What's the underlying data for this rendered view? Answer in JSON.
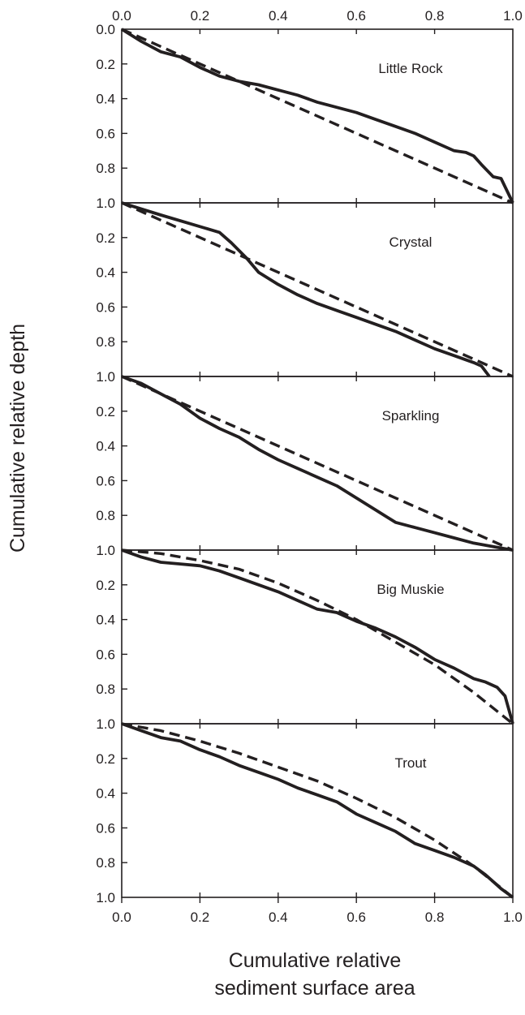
{
  "chart_data": {
    "type": "line",
    "ylabel": "Cumulative relative depth",
    "xlabel_lines": [
      "Cumulative relative",
      "sediment surface area"
    ],
    "xlim": [
      0,
      1
    ],
    "ylim": [
      0,
      1
    ],
    "y_inverted": true,
    "grid": false,
    "x_ticks": [
      "0.0",
      "0.2",
      "0.4",
      "0.6",
      "0.8",
      "1.0"
    ],
    "y_ticks": [
      "0.0",
      "0.2",
      "0.4",
      "0.6",
      "0.8",
      "1.0"
    ],
    "panels_y_ticks": [
      [
        "0.0",
        "0.2",
        "0.4",
        "0.6",
        "0.8",
        "1.0"
      ],
      [
        "1.0",
        "0.2",
        "0.4",
        "0.6",
        "0.8",
        "1.0"
      ],
      [
        "1.0",
        "0.2",
        "0.4",
        "0.6",
        "0.8",
        "1.0"
      ],
      [
        "1.0",
        "0.2",
        "0.4",
        "0.6",
        "0.8",
        "1.0"
      ],
      [
        "1.0",
        "0.2",
        "0.4",
        "0.6",
        "0.8",
        "1.0"
      ]
    ],
    "panels": [
      {
        "lake": "Little Rock",
        "series": [
          {
            "style": "solid",
            "x": [
              0,
              0.05,
              0.1,
              0.15,
              0.2,
              0.25,
              0.3,
              0.35,
              0.4,
              0.45,
              0.5,
              0.55,
              0.6,
              0.65,
              0.7,
              0.75,
              0.8,
              0.85,
              0.88,
              0.9,
              0.92,
              0.95,
              0.97,
              1.0
            ],
            "y": [
              0,
              0.07,
              0.13,
              0.16,
              0.22,
              0.27,
              0.3,
              0.32,
              0.35,
              0.38,
              0.42,
              0.45,
              0.48,
              0.52,
              0.56,
              0.6,
              0.65,
              0.7,
              0.71,
              0.73,
              0.78,
              0.85,
              0.86,
              1.0
            ]
          },
          {
            "style": "dashed",
            "x": [
              0,
              1
            ],
            "y": [
              0,
              1
            ]
          }
        ]
      },
      {
        "lake": "Crystal",
        "series": [
          {
            "style": "solid",
            "x": [
              0,
              0.1,
              0.25,
              0.28,
              0.32,
              0.35,
              0.4,
              0.45,
              0.5,
              0.55,
              0.6,
              0.65,
              0.7,
              0.75,
              0.8,
              0.85,
              0.9,
              0.92,
              0.94
            ],
            "y": [
              0,
              0.07,
              0.17,
              0.23,
              0.32,
              0.4,
              0.47,
              0.53,
              0.58,
              0.62,
              0.66,
              0.7,
              0.74,
              0.79,
              0.84,
              0.88,
              0.92,
              0.94,
              1.0
            ]
          },
          {
            "style": "dashed",
            "x": [
              0,
              1
            ],
            "y": [
              0,
              1
            ]
          }
        ]
      },
      {
        "lake": "Sparkling",
        "series": [
          {
            "style": "solid",
            "x": [
              0,
              0.05,
              0.1,
              0.15,
              0.2,
              0.25,
              0.3,
              0.35,
              0.4,
              0.45,
              0.5,
              0.55,
              0.6,
              0.65,
              0.7,
              0.75,
              0.8,
              0.85,
              0.9,
              0.95,
              1.0
            ],
            "y": [
              0,
              0.04,
              0.1,
              0.16,
              0.24,
              0.3,
              0.35,
              0.42,
              0.48,
              0.53,
              0.58,
              0.63,
              0.7,
              0.77,
              0.84,
              0.87,
              0.9,
              0.93,
              0.96,
              0.98,
              1.0
            ]
          },
          {
            "style": "dashed",
            "x": [
              0,
              1
            ],
            "y": [
              0,
              1
            ]
          }
        ]
      },
      {
        "lake": "Big Muskie",
        "series": [
          {
            "style": "solid",
            "x": [
              0,
              0.05,
              0.1,
              0.15,
              0.2,
              0.25,
              0.3,
              0.35,
              0.4,
              0.45,
              0.5,
              0.55,
              0.6,
              0.65,
              0.7,
              0.75,
              0.8,
              0.85,
              0.9,
              0.93,
              0.96,
              0.98,
              1.0
            ],
            "y": [
              0,
              0.04,
              0.07,
              0.08,
              0.09,
              0.12,
              0.16,
              0.2,
              0.24,
              0.29,
              0.34,
              0.36,
              0.41,
              0.45,
              0.5,
              0.56,
              0.63,
              0.68,
              0.74,
              0.76,
              0.79,
              0.84,
              1.0
            ]
          },
          {
            "style": "dashed",
            "x": [
              0,
              0.1,
              0.2,
              0.3,
              0.4,
              0.5,
              0.6,
              0.7,
              0.8,
              0.9,
              1.0
            ],
            "y": [
              0,
              0.02,
              0.06,
              0.11,
              0.19,
              0.29,
              0.4,
              0.53,
              0.66,
              0.82,
              1.0
            ]
          }
        ]
      },
      {
        "lake": "Trout",
        "series": [
          {
            "style": "solid",
            "x": [
              0,
              0.05,
              0.1,
              0.15,
              0.2,
              0.25,
              0.3,
              0.35,
              0.4,
              0.45,
              0.5,
              0.55,
              0.6,
              0.65,
              0.7,
              0.75,
              0.8,
              0.85,
              0.9,
              0.93,
              0.95,
              0.97,
              1.0
            ],
            "y": [
              0,
              0.04,
              0.08,
              0.1,
              0.15,
              0.19,
              0.24,
              0.28,
              0.32,
              0.37,
              0.41,
              0.45,
              0.52,
              0.57,
              0.62,
              0.69,
              0.73,
              0.77,
              0.82,
              0.87,
              0.91,
              0.95,
              1.0
            ]
          },
          {
            "style": "dashed",
            "x": [
              0,
              0.1,
              0.2,
              0.3,
              0.4,
              0.5,
              0.6,
              0.7,
              0.8,
              0.9,
              1.0
            ],
            "y": [
              0,
              0.04,
              0.1,
              0.17,
              0.25,
              0.33,
              0.43,
              0.54,
              0.67,
              0.82,
              1.0
            ]
          }
        ]
      }
    ]
  }
}
